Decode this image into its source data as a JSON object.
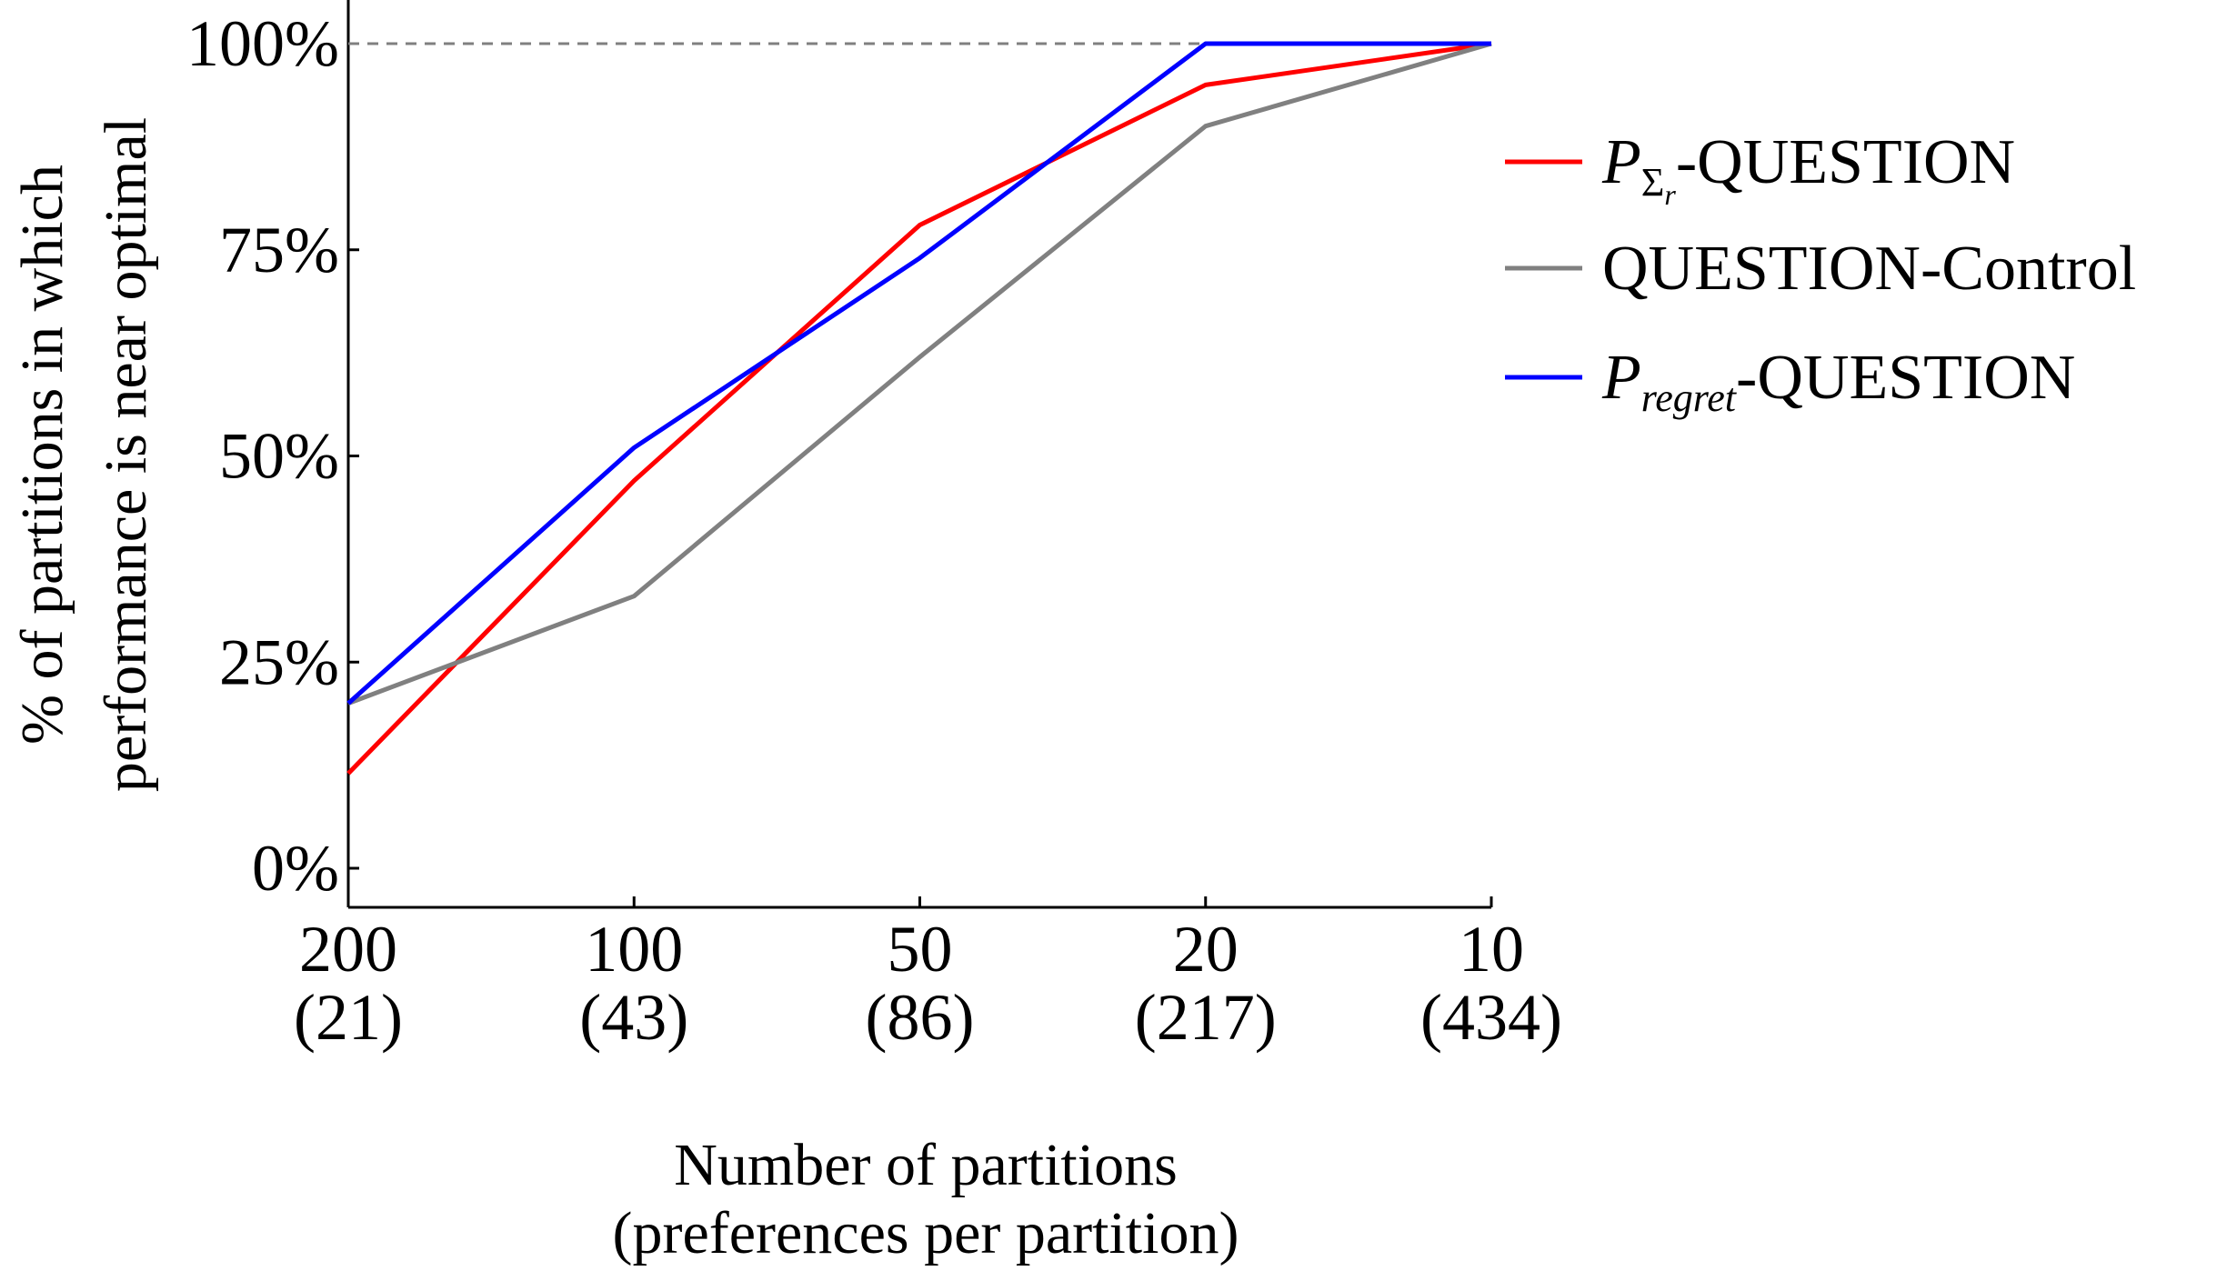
{
  "chart_data": {
    "type": "line",
    "title": "",
    "categories": [
      {
        "top": "200",
        "bottom": "(21)"
      },
      {
        "top": "100",
        "bottom": "(43)"
      },
      {
        "top": "50",
        "bottom": "(86)"
      },
      {
        "top": "20",
        "bottom": "(217)"
      },
      {
        "top": "10",
        "bottom": "(434)"
      }
    ],
    "xlabel": [
      "Number of partitions",
      "(preferences per partition)"
    ],
    "ylabel": [
      "% of partitions in which",
      "performance is near optimal"
    ],
    "ylim": [
      -5,
      100
    ],
    "yticks": [
      0,
      25,
      50,
      75,
      100
    ],
    "ytick_labels": [
      "0%",
      "25%",
      "50%",
      "75%",
      "100%"
    ],
    "reference_line": {
      "value": 100,
      "style": "dashed",
      "color": "#808080"
    },
    "series": [
      {
        "name": "P_{Σ_r}-QUESTION",
        "legend": {
          "main": "P",
          "sub": "Σ",
          "subsub": "r",
          "suffix": "-QUESTION"
        },
        "color": "#ff0000",
        "values": [
          11.5,
          47,
          78,
          95,
          100
        ]
      },
      {
        "name": "QUESTION-Control",
        "legend": {
          "main": "QUESTION-Control",
          "sub": "",
          "subsub": "",
          "suffix": ""
        },
        "color": "#808080",
        "values": [
          20,
          33,
          62,
          90,
          100
        ]
      },
      {
        "name": "P_regret-QUESTION",
        "legend": {
          "main": "P",
          "sub": "regret",
          "subsub": "",
          "suffix": "-QUESTION"
        },
        "color": "#0000ff",
        "values": [
          20,
          51,
          74,
          100,
          100
        ]
      }
    ],
    "legend_position": "right",
    "grid": false
  }
}
